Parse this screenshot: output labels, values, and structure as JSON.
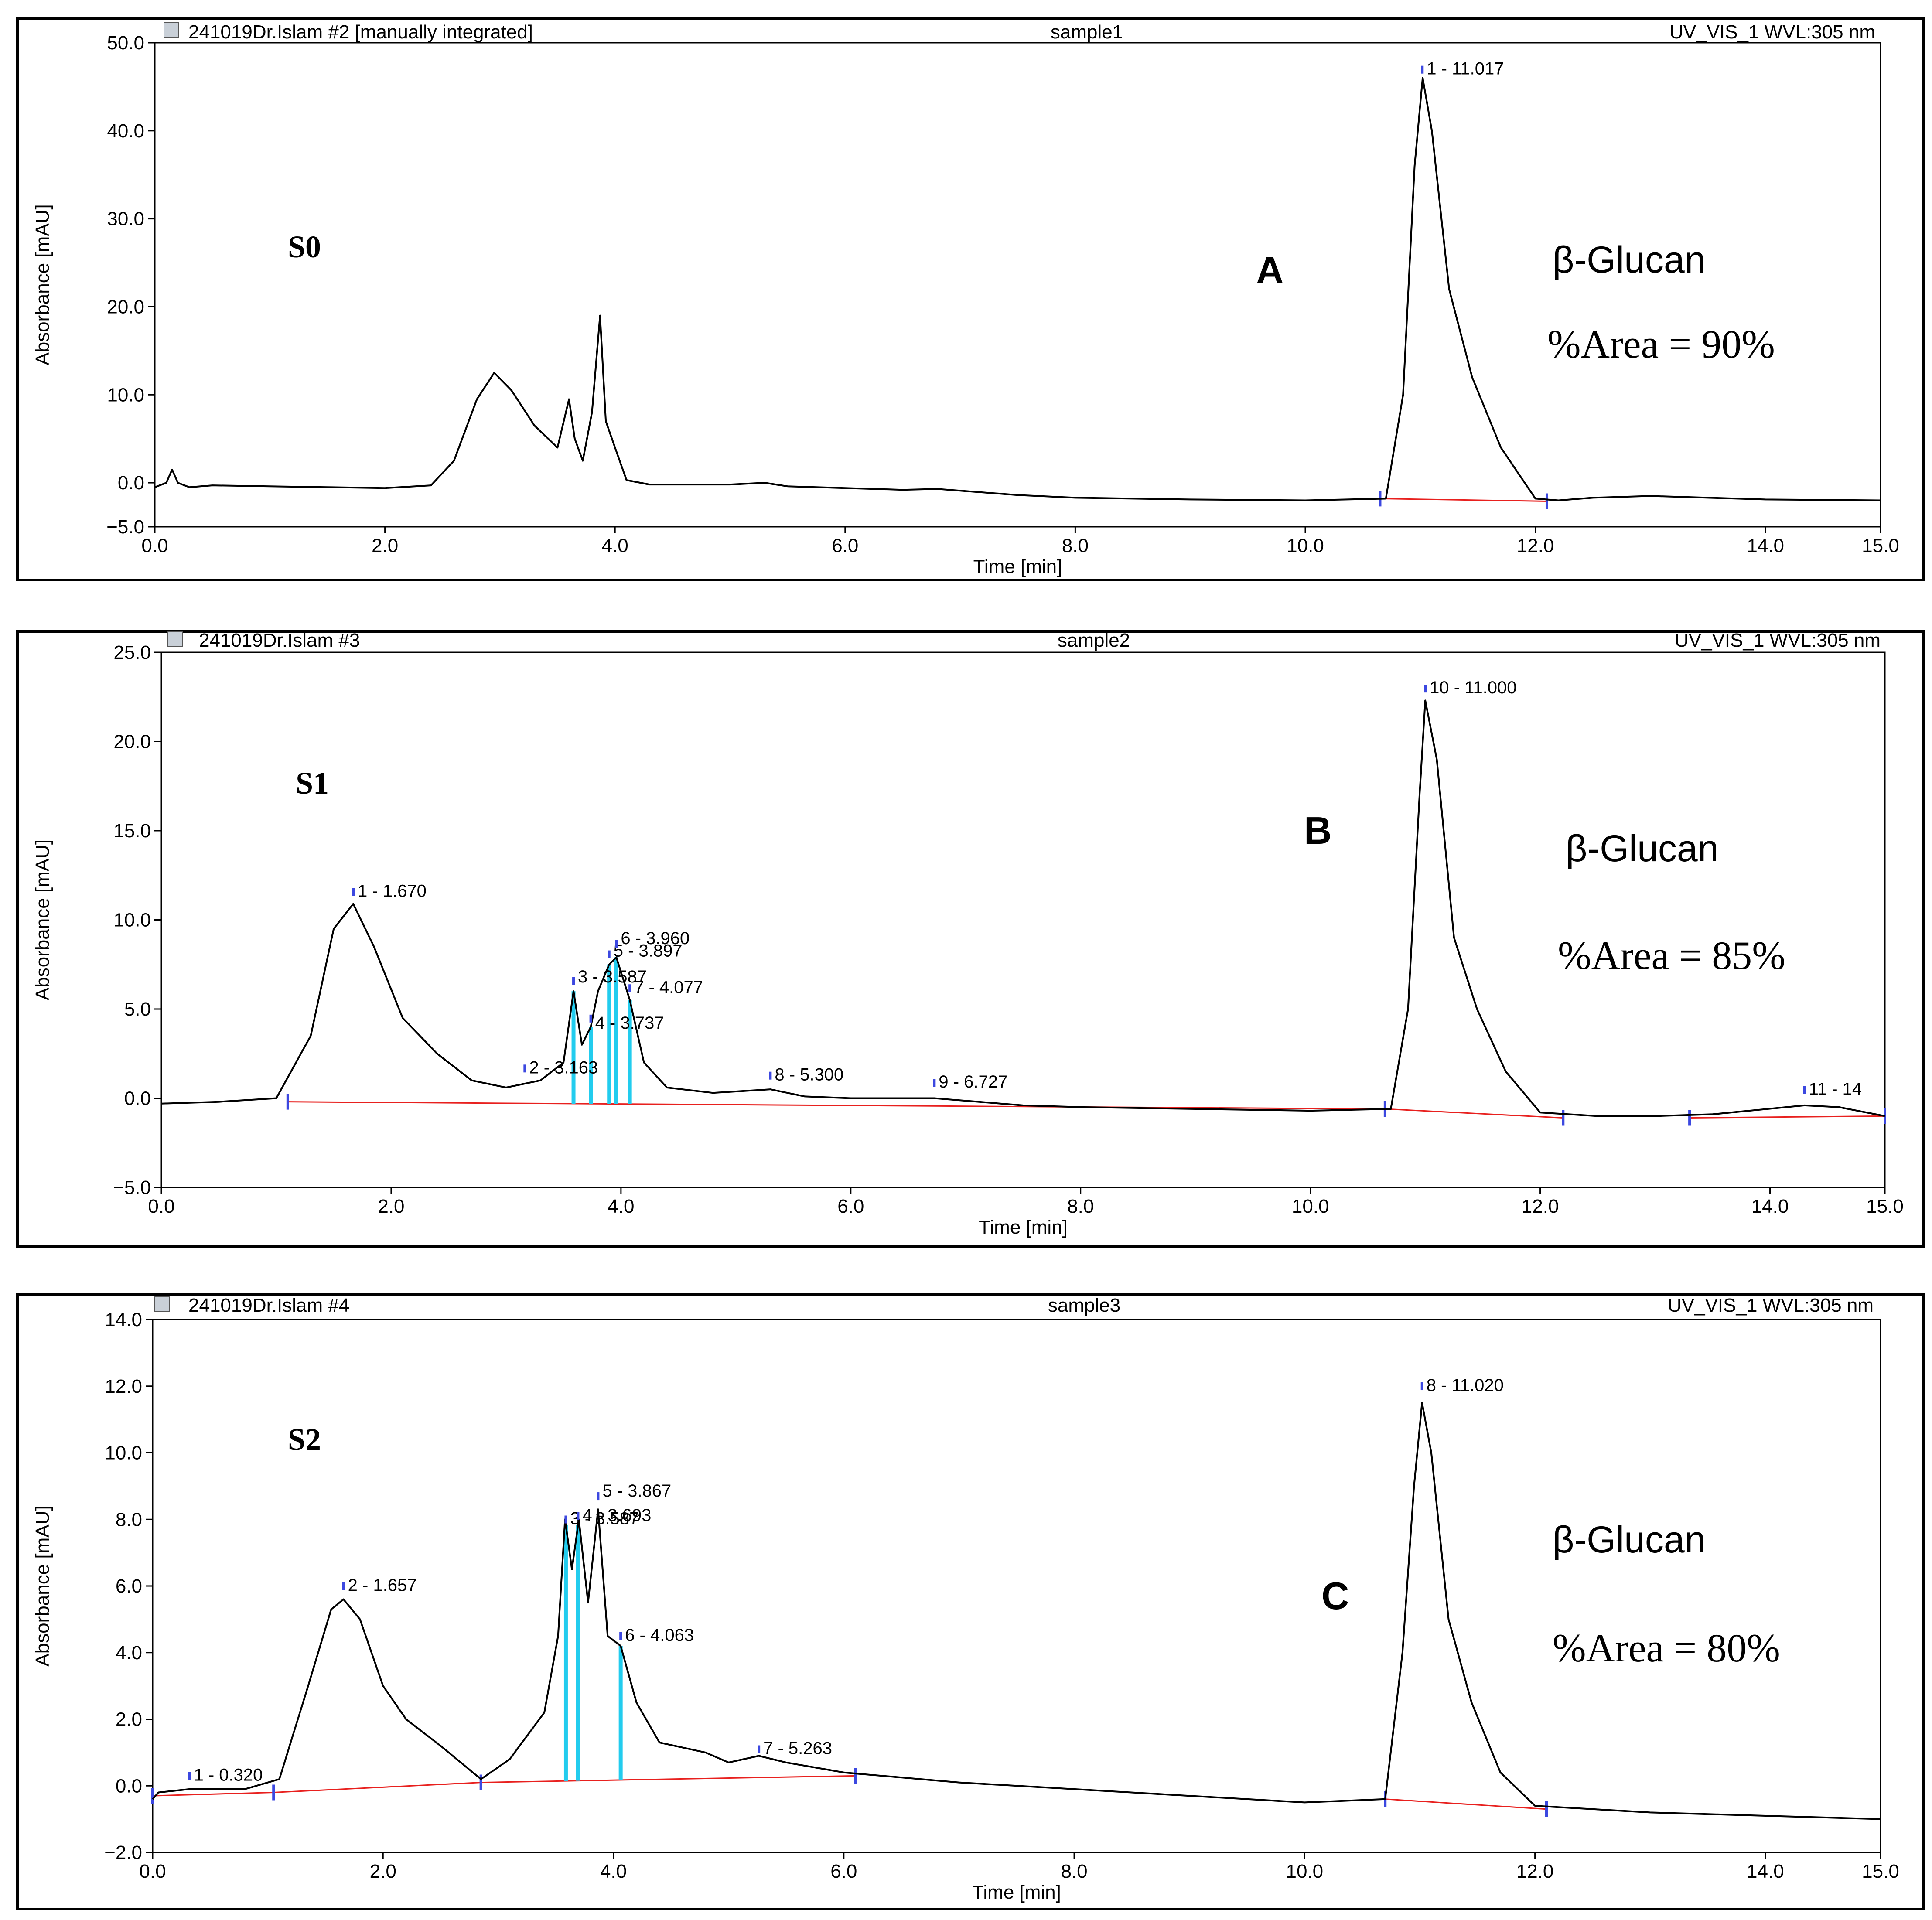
{
  "chart_data": [
    {
      "type": "line",
      "panel_header": {
        "file": "241019Dr.Islam #2 [manually integrated]",
        "sample": "sample1",
        "detector": "UV_VIS_1 WVL:305 nm"
      },
      "sample_id": "S0",
      "panel_letter": "A",
      "annotation": {
        "compound": "β-Glucan",
        "area_text": "%Area = 90%"
      },
      "xlabel": "Time [min]",
      "ylabel": "Absorbance [mAU]",
      "xlim": [
        0,
        15
      ],
      "ylim": [
        -5,
        50
      ],
      "xticks": [
        "0.0",
        "2.0",
        "4.0",
        "6.0",
        "8.0",
        "10.0",
        "12.0",
        "14.0",
        "15.0"
      ],
      "yticks": [
        "-5.0",
        "0.0",
        "10.0",
        "20.0",
        "30.0",
        "40.0",
        "50.0"
      ],
      "series": [
        {
          "name": "trace",
          "x": [
            0.0,
            0.1,
            0.15,
            0.2,
            0.3,
            0.5,
            1.0,
            1.5,
            2.0,
            2.4,
            2.6,
            2.8,
            2.95,
            3.1,
            3.3,
            3.5,
            3.6,
            3.65,
            3.72,
            3.8,
            3.87,
            3.92,
            4.0,
            4.1,
            4.3,
            5.0,
            5.3,
            5.5,
            6.0,
            6.5,
            6.8,
            7.5,
            8.0,
            9.0,
            10.0,
            10.7,
            10.85,
            10.95,
            11.02,
            11.1,
            11.25,
            11.45,
            11.7,
            12.0,
            12.2,
            12.5,
            13.0,
            13.5,
            14.0,
            15.0
          ],
          "y": [
            -0.5,
            0.0,
            1.5,
            0.0,
            -0.5,
            -0.3,
            -0.4,
            -0.5,
            -0.6,
            -0.3,
            2.5,
            9.5,
            12.5,
            10.5,
            6.5,
            4.0,
            9.5,
            5.0,
            2.5,
            8.0,
            19.0,
            7.0,
            4.0,
            0.3,
            -0.2,
            -0.2,
            0.0,
            -0.4,
            -0.6,
            -0.8,
            -0.7,
            -1.4,
            -1.7,
            -1.9,
            -2.0,
            -1.8,
            10.0,
            36.0,
            46.0,
            40.0,
            22.0,
            12.0,
            4.0,
            -1.8,
            -2.0,
            -1.7,
            -1.5,
            -1.7,
            -1.9,
            -2.0
          ]
        }
      ],
      "peak_labels": [
        {
          "text": "1 - 11.017",
          "x": 11.017,
          "y": 46.2
        }
      ],
      "baselines": [
        [
          10.65,
          -1.8,
          12.1,
          -2.1
        ]
      ]
    },
    {
      "type": "line",
      "panel_header": {
        "file": "241019Dr.Islam #3",
        "sample": "sample2",
        "detector": "UV_VIS_1 WVL:305 nm"
      },
      "sample_id": "S1",
      "panel_letter": "B",
      "annotation": {
        "compound": "β-Glucan",
        "area_text": "%Area = 85%"
      },
      "xlabel": "Time [min]",
      "ylabel": "Absorbance [mAU]",
      "xlim": [
        0,
        15
      ],
      "ylim": [
        -5,
        25
      ],
      "xticks": [
        "0.0",
        "2.0",
        "4.0",
        "6.0",
        "8.0",
        "10.0",
        "12.0",
        "14.0",
        "15.0"
      ],
      "yticks": [
        "-5.0",
        "0.0",
        "5.0",
        "10.0",
        "15.0",
        "20.0",
        "25.0"
      ],
      "series": [
        {
          "name": "trace",
          "x": [
            0.0,
            0.5,
            1.0,
            1.3,
            1.5,
            1.67,
            1.85,
            2.1,
            2.4,
            2.7,
            3.0,
            3.3,
            3.5,
            3.587,
            3.66,
            3.737,
            3.8,
            3.897,
            3.96,
            4.077,
            4.2,
            4.4,
            4.8,
            5.3,
            5.6,
            6.0,
            6.727,
            7.5,
            8.0,
            9.0,
            10.0,
            10.7,
            10.85,
            10.95,
            11.0,
            11.1,
            11.25,
            11.45,
            11.7,
            12.0,
            12.5,
            13.0,
            13.5,
            14.3,
            14.6,
            15.0
          ],
          "y": [
            -0.3,
            -0.2,
            0.0,
            3.5,
            9.5,
            10.9,
            8.5,
            4.5,
            2.5,
            1.0,
            0.6,
            1.0,
            2.0,
            6.0,
            3.0,
            4.0,
            6.0,
            7.5,
            7.9,
            5.5,
            2.0,
            0.6,
            0.3,
            0.5,
            0.1,
            0.0,
            0.0,
            -0.4,
            -0.5,
            -0.6,
            -0.7,
            -0.6,
            5.0,
            17.0,
            22.3,
            19.0,
            9.0,
            5.0,
            1.5,
            -0.8,
            -1.0,
            -1.0,
            -0.9,
            -0.4,
            -0.5,
            -1.0
          ]
        }
      ],
      "peak_labels": [
        {
          "text": "1 - 1.670",
          "x": 1.67,
          "y": 11.2
        },
        {
          "text": "2 - 3.163",
          "x": 3.163,
          "y": 1.3
        },
        {
          "text": "3 - 3.587",
          "x": 3.587,
          "y": 6.2
        },
        {
          "text": "4 - 3.737",
          "x": 3.737,
          "y": 4.1
        },
        {
          "text": "5 - 3.897",
          "x": 3.897,
          "y": 7.7
        },
        {
          "text": "6 - 3.960",
          "x": 3.96,
          "y": 8.3
        },
        {
          "text": "7 - 4.077",
          "x": 4.077,
          "y": 5.8
        },
        {
          "text": "8 - 5.300",
          "x": 5.3,
          "y": 0.9
        },
        {
          "text": "9 - 6.727",
          "x": 6.727,
          "y": 0.5
        },
        {
          "text": "10 - 11.000",
          "x": 11.0,
          "y": 22.6
        },
        {
          "text": "11 - 14",
          "x": 14.3,
          "y": 0.1
        }
      ],
      "baselines": [
        [
          1.1,
          -0.2,
          10.65,
          -0.6
        ],
        [
          10.65,
          -0.6,
          12.2,
          -1.1
        ],
        [
          13.3,
          -1.1,
          15.0,
          -1.0
        ]
      ]
    },
    {
      "type": "line",
      "panel_header": {
        "file": "241019Dr.Islam #4",
        "sample": "sample3",
        "detector": "UV_VIS_1 WVL:305 nm"
      },
      "sample_id": "S2",
      "panel_letter": "C",
      "annotation": {
        "compound": "β-Glucan",
        "area_text": "%Area = 80%"
      },
      "xlabel": "Time [min]",
      "ylabel": "Absorbance [mAU]",
      "xlim": [
        0,
        15
      ],
      "ylim": [
        -2,
        14
      ],
      "xticks": [
        "0.0",
        "2.0",
        "4.0",
        "6.0",
        "8.0",
        "10.0",
        "12.0",
        "14.0",
        "15.0"
      ],
      "yticks": [
        "-2.0",
        "0.0",
        "2.0",
        "4.0",
        "6.0",
        "8.0",
        "10.0",
        "12.0",
        "14.0"
      ],
      "series": [
        {
          "name": "trace",
          "x": [
            0.0,
            0.05,
            0.32,
            0.8,
            1.1,
            1.35,
            1.55,
            1.657,
            1.8,
            2.0,
            2.2,
            2.5,
            2.85,
            3.1,
            3.4,
            3.52,
            3.58,
            3.64,
            3.7,
            3.78,
            3.867,
            3.95,
            4.063,
            4.2,
            4.4,
            4.8,
            5.0,
            5.263,
            5.5,
            6.0,
            7.0,
            8.0,
            9.0,
            10.0,
            10.7,
            10.85,
            10.95,
            11.02,
            11.1,
            11.25,
            11.45,
            11.7,
            12.0,
            12.5,
            13.0,
            14.0,
            15.0
          ],
          "y": [
            -0.4,
            -0.2,
            -0.1,
            -0.1,
            0.2,
            3.0,
            5.3,
            5.6,
            5.0,
            3.0,
            2.0,
            1.2,
            0.2,
            0.8,
            2.2,
            4.5,
            8.0,
            6.5,
            8.0,
            5.5,
            8.3,
            4.5,
            4.2,
            2.5,
            1.3,
            1.0,
            0.7,
            0.9,
            0.7,
            0.4,
            0.1,
            -0.1,
            -0.3,
            -0.5,
            -0.4,
            4.0,
            9.0,
            11.5,
            10.0,
            5.0,
            2.5,
            0.4,
            -0.6,
            -0.7,
            -0.8,
            -0.9,
            -1.0
          ]
        }
      ],
      "peak_labels": [
        {
          "text": "1 - 0.320",
          "x": 0.32,
          "y": 0.1
        },
        {
          "text": "2 - 1.657",
          "x": 1.657,
          "y": 5.8
        },
        {
          "text": "3 - 3.587",
          "x": 3.587,
          "y": 7.8
        },
        {
          "text": "4 - 3.693",
          "x": 3.693,
          "y": 7.9
        },
        {
          "text": "5 - 3.867",
          "x": 3.867,
          "y": 8.5
        },
        {
          "text": "6 - 4.063",
          "x": 4.063,
          "y": 4.3
        },
        {
          "text": "7 - 5.263",
          "x": 5.263,
          "y": 0.9
        },
        {
          "text": "8 - 11.020",
          "x": 11.02,
          "y": 11.8
        }
      ],
      "baselines": [
        [
          0.0,
          -0.3,
          1.05,
          -0.2
        ],
        [
          1.05,
          -0.2,
          2.85,
          0.1
        ],
        [
          2.85,
          0.1,
          6.1,
          0.3
        ],
        [
          10.7,
          -0.4,
          12.1,
          -0.7
        ]
      ]
    }
  ]
}
